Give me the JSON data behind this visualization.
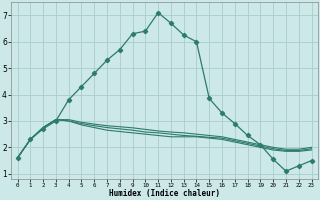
{
  "xlabel": "Humidex (Indice chaleur)",
  "background_color": "#cce8e8",
  "grid_color": "#aacccc",
  "line_color": "#2d7a6e",
  "xlim": [
    -0.5,
    23.5
  ],
  "ylim": [
    0.8,
    7.5
  ],
  "xticks": [
    0,
    1,
    2,
    3,
    4,
    5,
    6,
    7,
    8,
    9,
    10,
    11,
    12,
    13,
    14,
    15,
    16,
    17,
    18,
    19,
    20,
    21,
    22,
    23
  ],
  "yticks": [
    1,
    2,
    3,
    4,
    5,
    6,
    7
  ],
  "series": [
    {
      "x": [
        0,
        1,
        2,
        3,
        4,
        5,
        6,
        7,
        8,
        9,
        10,
        11,
        12,
        13,
        14,
        15,
        16,
        17,
        18,
        19,
        20,
        21,
        22,
        23
      ],
      "y": [
        1.6,
        2.3,
        2.7,
        3.0,
        3.8,
        4.3,
        4.8,
        5.3,
        5.7,
        6.3,
        6.4,
        7.1,
        6.7,
        6.25,
        6.0,
        3.85,
        3.3,
        2.9,
        2.45,
        2.1,
        1.55,
        1.1,
        1.3,
        1.5
      ],
      "markers": true
    },
    {
      "x": [
        0,
        1,
        2,
        3,
        4,
        5,
        6,
        7,
        8,
        9,
        10,
        11,
        12,
        13,
        14,
        15,
        16,
        17,
        18,
        19,
        20,
        21,
        22,
        23
      ],
      "y": [
        1.6,
        2.3,
        2.75,
        3.05,
        3.0,
        2.85,
        2.75,
        2.65,
        2.6,
        2.55,
        2.5,
        2.45,
        2.4,
        2.4,
        2.4,
        2.35,
        2.3,
        2.2,
        2.1,
        2.0,
        1.9,
        1.85,
        1.85,
        1.9
      ],
      "markers": false
    },
    {
      "x": [
        0,
        1,
        2,
        3,
        4,
        5,
        6,
        7,
        8,
        9,
        10,
        11,
        12,
        13,
        14,
        15,
        16,
        17,
        18,
        19,
        20,
        21,
        22,
        23
      ],
      "y": [
        1.6,
        2.3,
        2.75,
        3.05,
        3.0,
        2.9,
        2.82,
        2.75,
        2.7,
        2.65,
        2.58,
        2.55,
        2.5,
        2.45,
        2.42,
        2.38,
        2.35,
        2.25,
        2.15,
        2.05,
        1.95,
        1.88,
        1.88,
        1.95
      ],
      "markers": false
    },
    {
      "x": [
        0,
        1,
        2,
        3,
        4,
        5,
        6,
        7,
        8,
        9,
        10,
        11,
        12,
        13,
        14,
        15,
        16,
        17,
        18,
        19,
        20,
        21,
        22,
        23
      ],
      "y": [
        1.6,
        2.3,
        2.75,
        3.05,
        3.05,
        2.95,
        2.88,
        2.82,
        2.78,
        2.74,
        2.68,
        2.62,
        2.58,
        2.55,
        2.5,
        2.45,
        2.4,
        2.3,
        2.2,
        2.1,
        2.0,
        1.93,
        1.93,
        2.0
      ],
      "markers": false
    }
  ]
}
